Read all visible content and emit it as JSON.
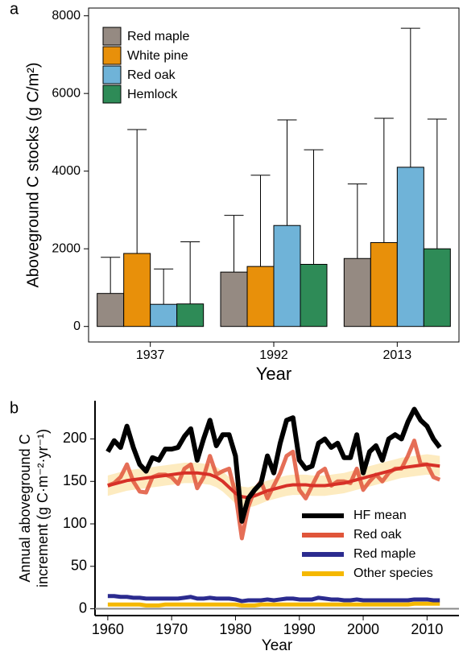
{
  "chart_data": [
    {
      "type": "bar",
      "panel": "a",
      "xlabel": "Year",
      "ylabel": "Aboveground C stocks (g C/m²)",
      "categories": [
        "1937",
        "1992",
        "2013"
      ],
      "series": [
        {
          "name": "Red maple",
          "color": "#958a82",
          "values": [
            850,
            1400,
            1750
          ],
          "errors": [
            930,
            1460,
            1920
          ]
        },
        {
          "name": "White pine",
          "color": "#e8900a",
          "values": [
            1880,
            1545,
            2160
          ],
          "errors": [
            3190,
            2350,
            3200
          ]
        },
        {
          "name": "Red oak",
          "color": "#6fb3d8",
          "values": [
            570,
            2600,
            4100
          ],
          "errors": [
            910,
            2720,
            3580
          ]
        },
        {
          "name": "Hemlock",
          "color": "#2e8b57",
          "values": [
            580,
            1600,
            2000
          ],
          "errors": [
            1600,
            2950,
            3340
          ]
        }
      ],
      "ylim": [
        -400,
        8200
      ],
      "yticks": [
        0,
        2000,
        4000,
        6000,
        8000
      ],
      "legend": "top-left"
    },
    {
      "type": "line",
      "panel": "b",
      "xlabel": "Year",
      "ylabel": [
        "Annual aboveground C",
        "increment (g C·m⁻²·yr⁻¹)"
      ],
      "x": [
        1960,
        1961,
        1962,
        1963,
        1964,
        1965,
        1966,
        1967,
        1968,
        1969,
        1970,
        1971,
        1972,
        1973,
        1974,
        1975,
        1976,
        1977,
        1978,
        1979,
        1980,
        1981,
        1982,
        1983,
        1984,
        1985,
        1986,
        1987,
        1988,
        1989,
        1990,
        1991,
        1992,
        1993,
        1994,
        1995,
        1996,
        1997,
        1998,
        1999,
        2000,
        2001,
        2002,
        2003,
        2004,
        2005,
        2006,
        2007,
        2008,
        2009,
        2010,
        2011,
        2012
      ],
      "series": [
        {
          "name": "HF mean",
          "color": "#000000",
          "values": [
            185,
            198,
            190,
            215,
            190,
            170,
            162,
            178,
            175,
            188,
            188,
            190,
            203,
            212,
            175,
            200,
            222,
            192,
            205,
            205,
            180,
            103,
            130,
            140,
            148,
            180,
            160,
            195,
            222,
            225,
            175,
            165,
            168,
            195,
            200,
            190,
            195,
            178,
            178,
            205,
            160,
            185,
            192,
            175,
            200,
            205,
            200,
            220,
            235,
            222,
            215,
            200,
            190
          ]
        },
        {
          "name": "Red oak",
          "color": "#e0553a",
          "values": [
            145,
            148,
            155,
            170,
            150,
            138,
            137,
            155,
            158,
            158,
            155,
            147,
            165,
            170,
            142,
            155,
            180,
            158,
            162,
            165,
            135,
            83,
            120,
            140,
            150,
            130,
            145,
            160,
            180,
            185,
            140,
            130,
            145,
            160,
            165,
            145,
            150,
            150,
            148,
            165,
            140,
            150,
            158,
            150,
            160,
            165,
            165,
            180,
            198,
            170,
            170,
            155,
            152
          ],
          "smooth": [
            145,
            147,
            149,
            151,
            152,
            153,
            154,
            155,
            156,
            157,
            158,
            159,
            160,
            160,
            160,
            159,
            158,
            155,
            150,
            143,
            136,
            132,
            131,
            133,
            136,
            139,
            141,
            143,
            145,
            146,
            146,
            146,
            145,
            145,
            145,
            146,
            147,
            148,
            150,
            152,
            154,
            156,
            158,
            160,
            162,
            164,
            166,
            167,
            168,
            169,
            170,
            169,
            168
          ],
          "smooth_color": "#d73027",
          "band_color": "#fde6b0",
          "smooth_band": 12
        },
        {
          "name": "Red maple",
          "color": "#2b2b8f",
          "values": [
            15,
            15,
            14,
            14,
            13,
            13,
            12,
            12,
            12,
            12,
            12,
            12,
            13,
            14,
            12,
            12,
            13,
            12,
            12,
            12,
            11,
            9,
            10,
            10,
            10,
            11,
            10,
            11,
            12,
            12,
            11,
            11,
            11,
            13,
            12,
            11,
            11,
            10,
            10,
            11,
            10,
            10,
            10,
            10,
            10,
            10,
            10,
            10,
            11,
            11,
            11,
            10,
            10
          ]
        },
        {
          "name": "Other species",
          "color": "#f5b800",
          "values": [
            5,
            5,
            5,
            5,
            5,
            5,
            4,
            4,
            4,
            5,
            5,
            5,
            5,
            5,
            5,
            5,
            5,
            5,
            5,
            5,
            5,
            4,
            4,
            4,
            5,
            5,
            5,
            5,
            5,
            5,
            5,
            5,
            5,
            5,
            5,
            5,
            5,
            5,
            5,
            5,
            5,
            5,
            5,
            5,
            5,
            5,
            5,
            5,
            6,
            6,
            6,
            6,
            6
          ]
        }
      ],
      "xlim": [
        1958,
        2015
      ],
      "xticks": [
        1960,
        1970,
        1980,
        1990,
        2000,
        2010
      ],
      "ylim": [
        -8,
        245
      ],
      "yticks": [
        0,
        50,
        100,
        150,
        200
      ],
      "legend": "bottom-right",
      "zero_line": true
    }
  ]
}
